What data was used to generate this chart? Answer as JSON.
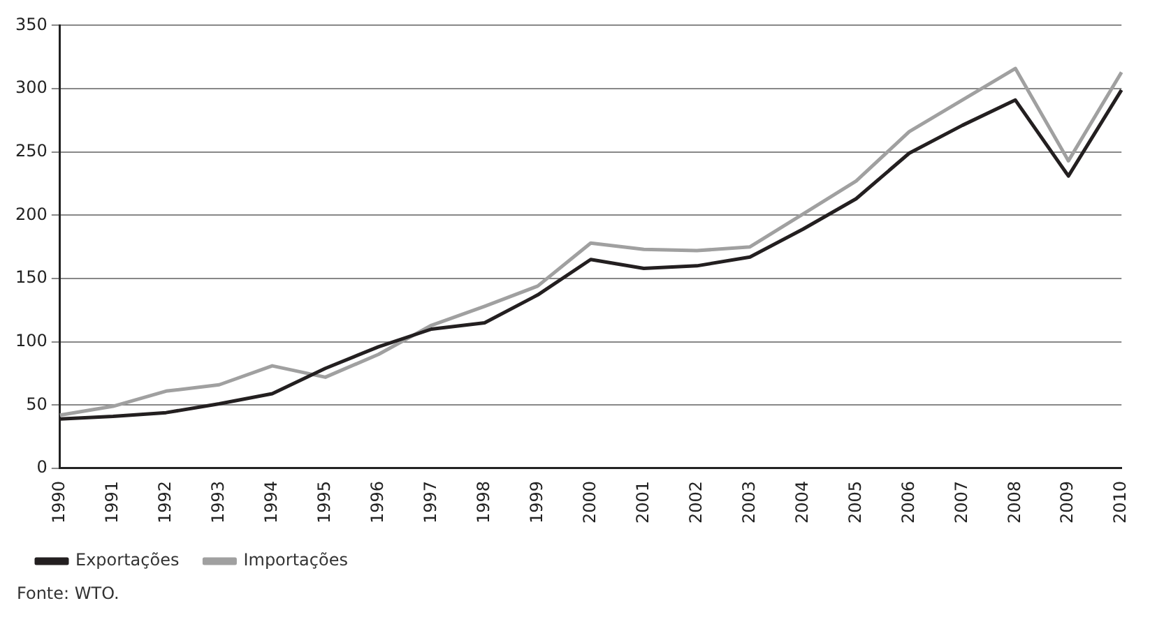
{
  "chart_data": {
    "type": "line",
    "categories": [
      "1990",
      "1991",
      "1992",
      "1993",
      "1994",
      "1995",
      "1996",
      "1997",
      "1998",
      "1999",
      "2000",
      "2001",
      "2002",
      "2003",
      "2004",
      "2005",
      "2006",
      "2007",
      "2008",
      "2009",
      "2010"
    ],
    "series": [
      {
        "name": "Exportações",
        "color": "#231f20",
        "values": [
          39,
          41,
          44,
          51,
          59,
          79,
          96,
          110,
          115,
          137,
          165,
          158,
          160,
          167,
          189,
          213,
          249,
          271,
          291,
          231,
          299
        ]
      },
      {
        "name": "Importações",
        "color": "#a0a0a0",
        "values": [
          42,
          49,
          61,
          66,
          81,
          72,
          90,
          113,
          128,
          144,
          178,
          173,
          172,
          175,
          201,
          227,
          266,
          291,
          316,
          243,
          313
        ]
      }
    ],
    "ylim": [
      0,
      350
    ],
    "yticks": [
      0,
      50,
      100,
      150,
      200,
      250,
      300,
      350
    ],
    "grid": "y",
    "legend": "bottom left",
    "marker": "none",
    "line_style": "solid",
    "annotations": [
      "Fonte: WTO."
    ]
  }
}
